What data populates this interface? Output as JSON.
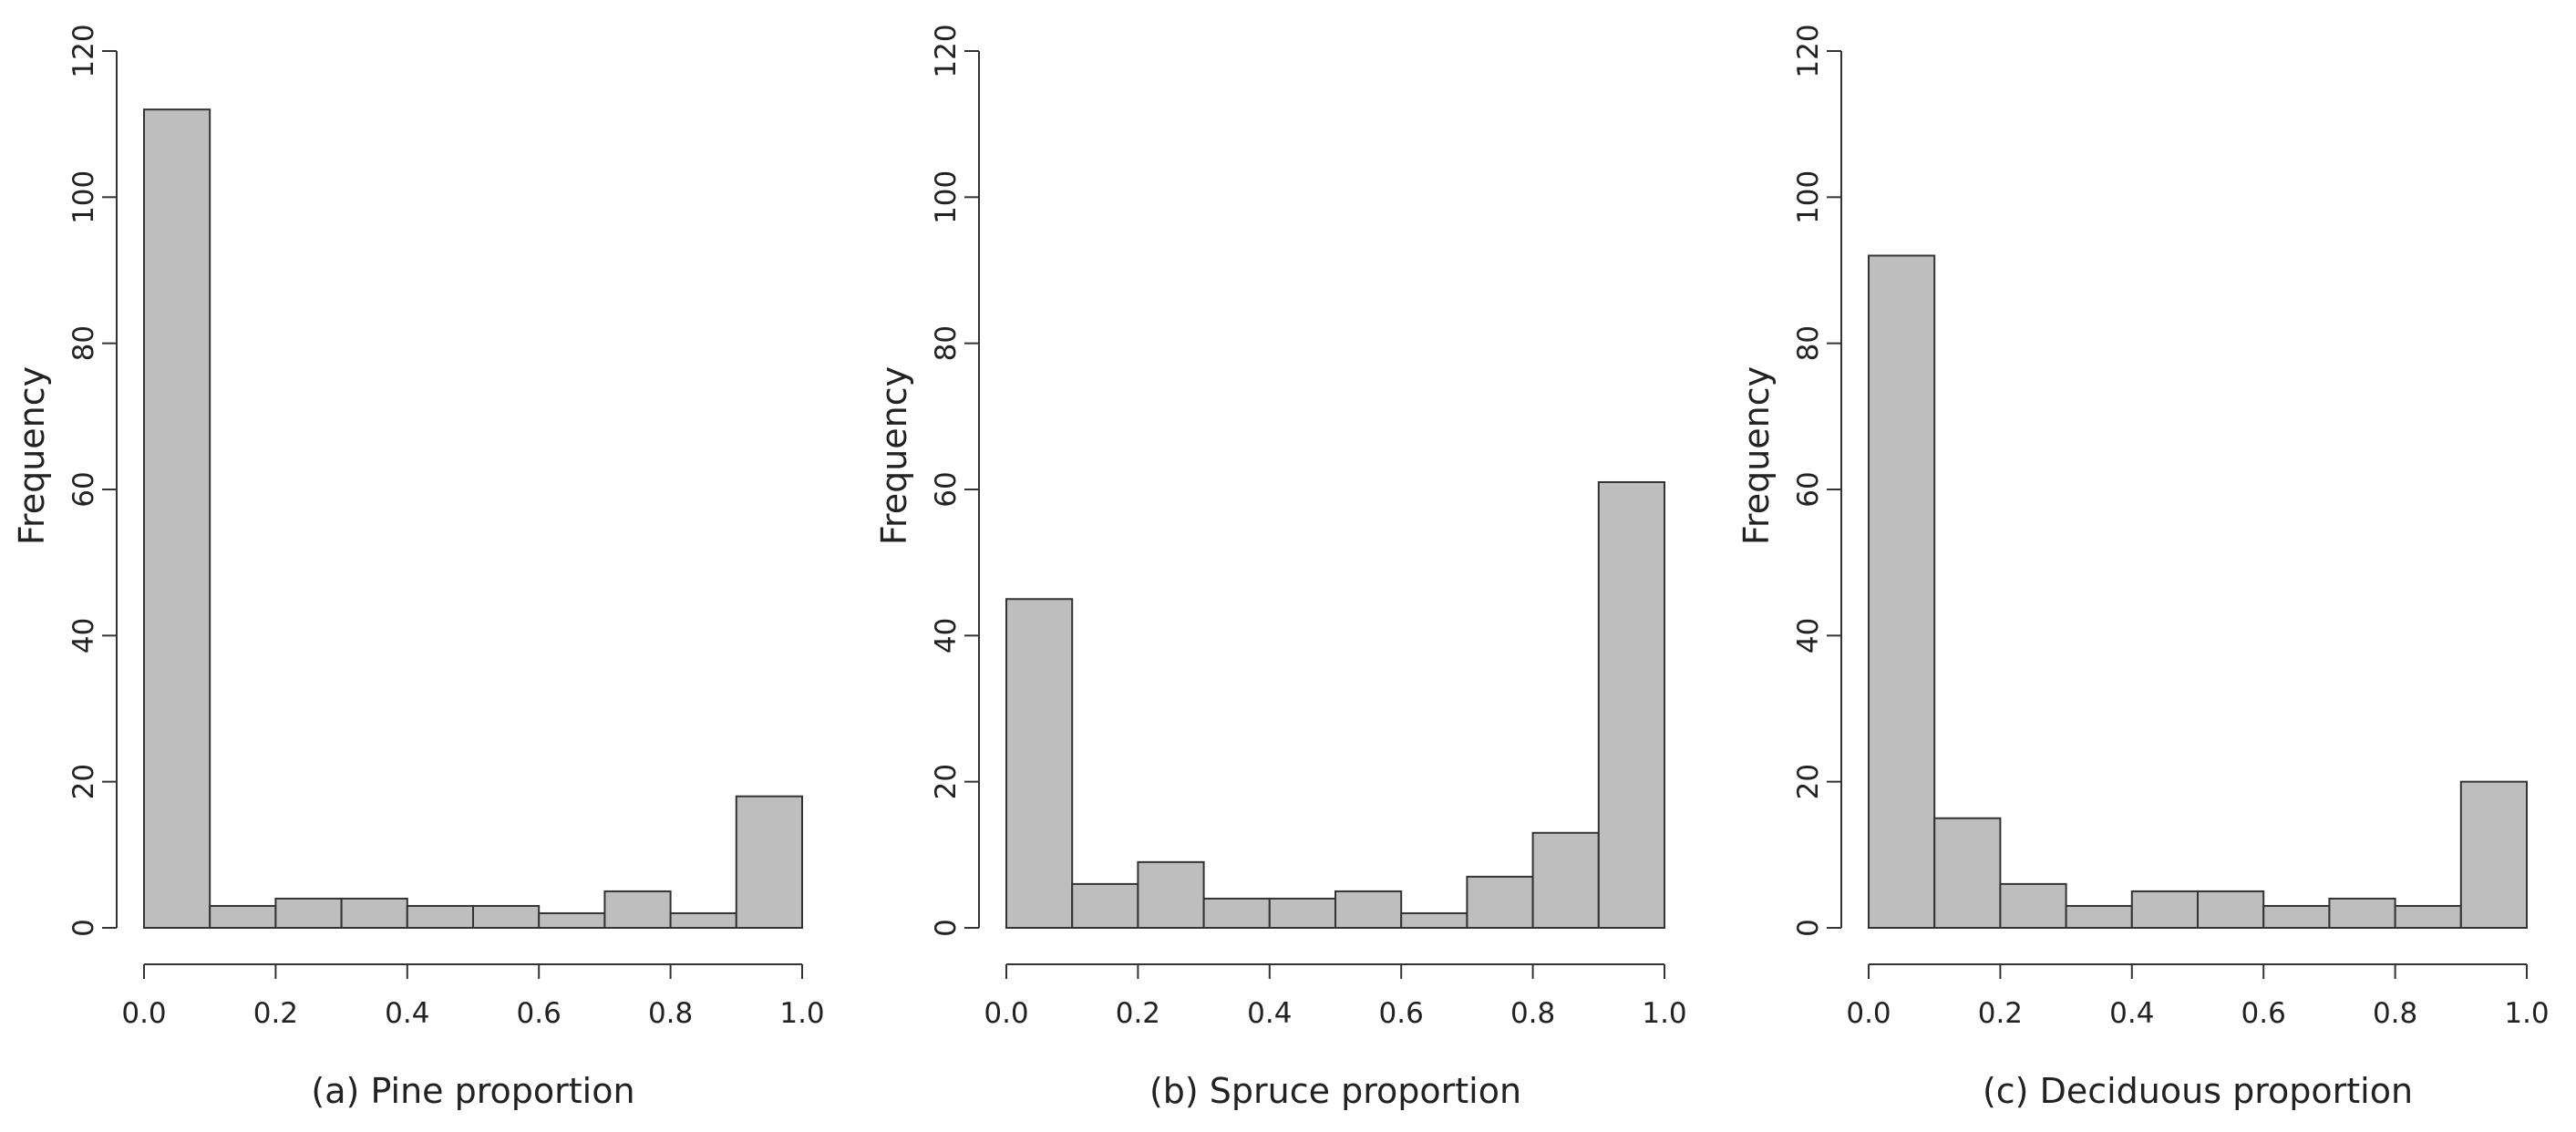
{
  "chart_data": [
    {
      "type": "bar",
      "title": "",
      "xlabel": "(a) Pine proportion",
      "ylabel": "Frequency",
      "bin_edges": [
        0.0,
        0.1,
        0.2,
        0.3,
        0.4,
        0.5,
        0.6,
        0.7,
        0.8,
        0.9,
        1.0
      ],
      "values": [
        112,
        3,
        4,
        4,
        3,
        3,
        2,
        5,
        2,
        18
      ],
      "xlim": [
        0.0,
        1.0
      ],
      "ylim": [
        0,
        120
      ],
      "xticks": [
        "0.0",
        "0.2",
        "0.4",
        "0.6",
        "0.8",
        "1.0"
      ],
      "yticks": [
        "0",
        "20",
        "40",
        "60",
        "80",
        "100",
        "120"
      ],
      "bar_color": "#bebebe",
      "grid": false
    },
    {
      "type": "bar",
      "title": "",
      "xlabel": "(b) Spruce proportion",
      "ylabel": "Frequency",
      "bin_edges": [
        0.0,
        0.1,
        0.2,
        0.3,
        0.4,
        0.5,
        0.6,
        0.7,
        0.8,
        0.9,
        1.0
      ],
      "values": [
        45,
        6,
        9,
        4,
        4,
        5,
        2,
        7,
        13,
        61
      ],
      "xlim": [
        0.0,
        1.0
      ],
      "ylim": [
        0,
        120
      ],
      "xticks": [
        "0.0",
        "0.2",
        "0.4",
        "0.6",
        "0.8",
        "1.0"
      ],
      "yticks": [
        "0",
        "20",
        "40",
        "60",
        "80",
        "100",
        "120"
      ],
      "bar_color": "#bebebe",
      "grid": false
    },
    {
      "type": "bar",
      "title": "",
      "xlabel": "(c) Deciduous proportion",
      "ylabel": "Frequency",
      "bin_edges": [
        0.0,
        0.1,
        0.2,
        0.3,
        0.4,
        0.5,
        0.6,
        0.7,
        0.8,
        0.9,
        1.0
      ],
      "values": [
        92,
        15,
        6,
        3,
        5,
        5,
        3,
        4,
        3,
        20
      ],
      "xlim": [
        0.0,
        1.0
      ],
      "ylim": [
        0,
        120
      ],
      "xticks": [
        "0.0",
        "0.2",
        "0.4",
        "0.6",
        "0.8",
        "1.0"
      ],
      "yticks": [
        "0",
        "20",
        "40",
        "60",
        "80",
        "100",
        "120"
      ],
      "bar_color": "#bebebe",
      "grid": false
    }
  ]
}
